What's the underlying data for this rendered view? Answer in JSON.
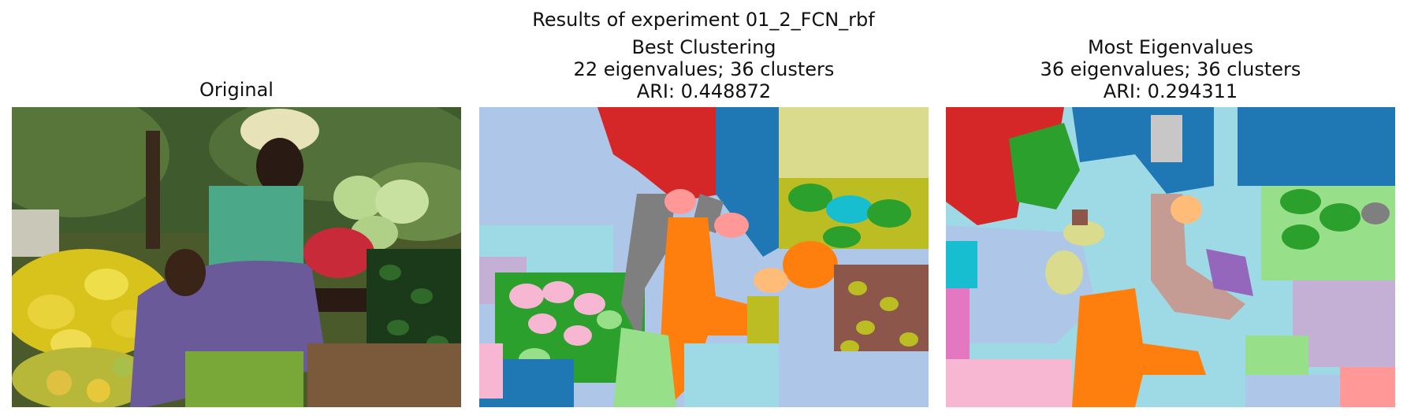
{
  "figure": {
    "suptitle": "Results of experiment 01_2_FCN_rbf"
  },
  "panels": [
    {
      "id": "original",
      "title_lines": [
        "Original"
      ],
      "image": "photo-of-market-vendor-with-baby-and-vegetables"
    },
    {
      "id": "best",
      "title_lines": [
        "Best Clustering",
        "22 eigenvalues; 36 clusters",
        "ARI: 0.448872"
      ],
      "image": "segmentation-map"
    },
    {
      "id": "most",
      "title_lines": [
        "Most Eigenvalues",
        "36 eigenvalues; 36 clusters",
        "ARI: 0.294311"
      ],
      "image": "segmentation-map"
    }
  ],
  "palette": {
    "blue": "#1f77b4",
    "light_blue": "#aec7e8",
    "orange": "#ff7f0e",
    "light_orange": "#ffbb78",
    "green": "#2ca02c",
    "light_green": "#98df8a",
    "red": "#d62728",
    "pink": "#ff9896",
    "purple": "#9467bd",
    "light_purple": "#c5b0d5",
    "brown": "#8c564b",
    "tan": "#c49c94",
    "magenta": "#e377c2",
    "light_pink": "#f7b6d2",
    "gray": "#7f7f7f",
    "light_gray": "#c7c7c7",
    "olive": "#bcbd22",
    "khaki": "#dbdb8d",
    "cyan": "#17becf",
    "light_cyan": "#9edae5"
  }
}
